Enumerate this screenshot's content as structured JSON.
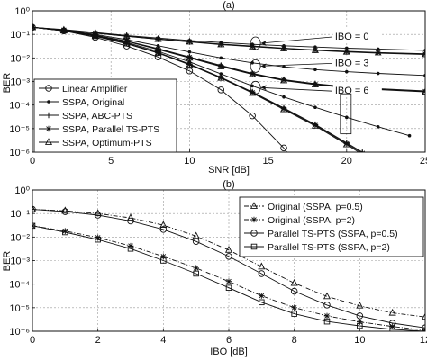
{
  "chart_data": [
    {
      "type": "line",
      "title": "(a)",
      "xlabel": "SNR [dB]",
      "ylabel": "BER",
      "xlim": [
        0,
        25
      ],
      "ylim": [
        1e-06,
        1
      ],
      "yscale": "log",
      "grid": true,
      "legend": "bottom-left",
      "xticks": [
        "0",
        "5",
        "10",
        "15",
        "20",
        "25"
      ],
      "yticks": [
        "10⁰",
        "10⁻¹",
        "10⁻²",
        "10⁻³",
        "10⁻⁴",
        "10⁻⁵",
        "10⁻⁶"
      ],
      "annotations": [
        {
          "text": "IBO = 0",
          "x": 19.2,
          "y": 0.06
        },
        {
          "text": "IBO = 3",
          "x": 19.2,
          "y": 0.0045
        },
        {
          "text": "IBO = 6",
          "x": 19.2,
          "y": 0.0003
        }
      ],
      "series": [
        {
          "name": "Linear Amplifier",
          "marker": "circle",
          "style": "solid",
          "x": [
            0,
            2,
            4,
            6,
            8,
            10,
            12,
            14,
            16,
            17
          ],
          "y": [
            0.2,
            0.14,
            0.075,
            0.032,
            0.011,
            0.0028,
            0.00044,
            3.5e-05,
            1.5e-06,
            2e-07
          ]
        },
        {
          "name": "SSPA, Original",
          "marker": "dot",
          "style": "solid",
          "group": "IBO = 0",
          "x": [
            0,
            2,
            4,
            6,
            8,
            10,
            12,
            14,
            16,
            18,
            20,
            22,
            25
          ],
          "y": [
            0.2,
            0.16,
            0.12,
            0.09,
            0.07,
            0.055,
            0.045,
            0.038,
            0.033,
            0.029,
            0.026,
            0.024,
            0.021
          ]
        },
        {
          "name": "SSPA, ABC-PTS",
          "marker": "plus",
          "style": "solid",
          "group": "IBO = 0",
          "x": [
            0,
            2,
            4,
            6,
            8,
            10,
            12,
            14,
            16,
            18,
            20,
            22,
            25
          ],
          "y": [
            0.2,
            0.155,
            0.115,
            0.085,
            0.064,
            0.05,
            0.039,
            0.032,
            0.026,
            0.022,
            0.019,
            0.017,
            0.015
          ]
        },
        {
          "name": "SSPA, Parallel TS-PTS",
          "marker": "star",
          "style": "solid",
          "group": "IBO = 0",
          "x": [
            0,
            2,
            4,
            6,
            8,
            10,
            12,
            14,
            16,
            18,
            20,
            22,
            25
          ],
          "y": [
            0.2,
            0.154,
            0.114,
            0.084,
            0.063,
            0.049,
            0.038,
            0.031,
            0.0255,
            0.0215,
            0.0185,
            0.0165,
            0.0145
          ]
        },
        {
          "name": "SSPA, Optimum-PTS",
          "marker": "triangle",
          "style": "solid",
          "group": "IBO = 0",
          "x": [
            0,
            2,
            4,
            6,
            8,
            10,
            12,
            14,
            16,
            18,
            20,
            22,
            25
          ],
          "y": [
            0.2,
            0.153,
            0.113,
            0.083,
            0.062,
            0.048,
            0.037,
            0.03,
            0.025,
            0.021,
            0.018,
            0.016,
            0.014
          ]
        },
        {
          "marker": "dot",
          "style": "solid",
          "group": "IBO = 3",
          "x": [
            0,
            2,
            4,
            6,
            8,
            10,
            12,
            14,
            16,
            18,
            20,
            22,
            25
          ],
          "y": [
            0.2,
            0.15,
            0.1,
            0.06,
            0.033,
            0.018,
            0.01,
            0.0062,
            0.0042,
            0.0032,
            0.0026,
            0.0022,
            0.0018
          ]
        },
        {
          "marker": "plus",
          "style": "solid",
          "group": "IBO = 3",
          "x": [
            0,
            2,
            4,
            6,
            8,
            10,
            12,
            14,
            16,
            18,
            20,
            22,
            25
          ],
          "y": [
            0.2,
            0.145,
            0.092,
            0.052,
            0.025,
            0.011,
            0.0048,
            0.0022,
            0.0012,
            0.0008,
            0.0006,
            0.0005,
            0.0004
          ]
        },
        {
          "marker": "star",
          "style": "solid",
          "group": "IBO = 3",
          "x": [
            0,
            2,
            4,
            6,
            8,
            10,
            12,
            14,
            16,
            18,
            20,
            22,
            25
          ],
          "y": [
            0.2,
            0.144,
            0.091,
            0.051,
            0.024,
            0.0105,
            0.0045,
            0.0021,
            0.00115,
            0.00076,
            0.00057,
            0.00047,
            0.00038
          ]
        },
        {
          "marker": "triangle",
          "style": "solid",
          "group": "IBO = 3",
          "x": [
            0,
            2,
            4,
            6,
            8,
            10,
            12,
            14,
            16,
            18,
            20,
            22,
            25
          ],
          "y": [
            0.2,
            0.143,
            0.09,
            0.05,
            0.023,
            0.01,
            0.0043,
            0.002,
            0.0011,
            0.00073,
            0.00055,
            0.00045,
            0.00036
          ]
        },
        {
          "marker": "dot",
          "style": "solid",
          "group": "IBO = 6",
          "x": [
            0,
            2,
            4,
            6,
            8,
            10,
            12,
            14,
            16,
            18,
            20,
            22,
            24
          ],
          "y": [
            0.2,
            0.145,
            0.088,
            0.045,
            0.019,
            0.0068,
            0.0021,
            0.00065,
            0.00022,
            8e-05,
            3e-05,
            1.2e-05,
            5e-06
          ]
        },
        {
          "marker": "plus",
          "style": "solid",
          "group": "IBO = 6",
          "x": [
            0,
            2,
            4,
            6,
            8,
            10,
            12,
            14,
            16,
            18,
            20,
            21
          ],
          "y": [
            0.2,
            0.143,
            0.085,
            0.042,
            0.017,
            0.0055,
            0.0015,
            0.00036,
            7.5e-05,
            1.5e-05,
            2.5e-06,
            1e-06
          ]
        },
        {
          "marker": "star",
          "style": "solid",
          "group": "IBO = 6",
          "x": [
            0,
            2,
            4,
            6,
            8,
            10,
            12,
            14,
            16,
            18,
            20,
            21
          ],
          "y": [
            0.2,
            0.142,
            0.084,
            0.041,
            0.0165,
            0.0053,
            0.00145,
            0.00034,
            7e-05,
            1.4e-05,
            2.3e-06,
            9e-07
          ]
        },
        {
          "marker": "triangle",
          "style": "solid",
          "group": "IBO = 6",
          "x": [
            0,
            2,
            4,
            6,
            8,
            10,
            12,
            14,
            16,
            18,
            20,
            21
          ],
          "y": [
            0.2,
            0.141,
            0.083,
            0.04,
            0.016,
            0.0051,
            0.0014,
            0.00032,
            6.5e-05,
            1.3e-05,
            2.1e-06,
            8e-07
          ]
        }
      ]
    },
    {
      "type": "line",
      "title": "(b)",
      "xlabel": "IBO [dB]",
      "ylabel": "BER",
      "xlim": [
        0,
        12
      ],
      "ylim": [
        1e-06,
        1
      ],
      "yscale": "log",
      "grid": true,
      "legend": "top-right",
      "xticks": [
        "0",
        "2",
        "4",
        "6",
        "8",
        "10",
        "12"
      ],
      "yticks": [
        "10⁰",
        "10⁻¹",
        "10⁻²",
        "10⁻³",
        "10⁻⁴",
        "10⁻⁵",
        "10⁻⁶"
      ],
      "series": [
        {
          "name": "Original (SSPA, p=0.5)",
          "marker": "triangle",
          "style": "dashdot",
          "x": [
            0,
            1,
            2,
            3,
            4,
            5,
            6,
            7,
            8,
            9,
            10,
            11,
            12
          ],
          "y": [
            0.15,
            0.13,
            0.1,
            0.065,
            0.032,
            0.011,
            0.0028,
            0.00055,
            0.00011,
            3e-05,
            1.2e-05,
            6e-06,
            4e-06
          ]
        },
        {
          "name": "Original (SSPA, p=2)",
          "marker": "star",
          "style": "dashdot",
          "x": [
            0,
            1,
            2,
            3,
            4,
            5,
            6,
            7,
            8,
            9,
            10,
            11,
            12
          ],
          "y": [
            0.03,
            0.018,
            0.0095,
            0.0042,
            0.0015,
            0.00048,
            0.00013,
            3.2e-05,
            1e-05,
            4.5e-06,
            2.5e-06,
            1.6e-06,
            1.1e-06
          ]
        },
        {
          "name": "Parallel TS-PTS (SSPA, p=0.5)",
          "marker": "circle",
          "style": "solid",
          "x": [
            0,
            1,
            2,
            3,
            4,
            5,
            6,
            7,
            8,
            9,
            10,
            11,
            12
          ],
          "y": [
            0.15,
            0.12,
            0.085,
            0.048,
            0.021,
            0.0065,
            0.0015,
            0.00028,
            5e-05,
            1.3e-05,
            4.5e-06,
            2.2e-06,
            1.4e-06
          ]
        },
        {
          "name": "Parallel TS-PTS (SSPA, p=2)",
          "marker": "square",
          "style": "solid",
          "x": [
            0,
            1,
            2,
            3,
            4,
            5,
            6,
            7,
            8,
            9,
            10,
            11,
            12
          ],
          "y": [
            0.03,
            0.016,
            0.0078,
            0.0032,
            0.001,
            0.00028,
            7e-05,
            1.7e-05,
            5.5e-06,
            2.6e-06,
            1.7e-06,
            1.2e-06,
            1e-06
          ]
        }
      ]
    }
  ]
}
